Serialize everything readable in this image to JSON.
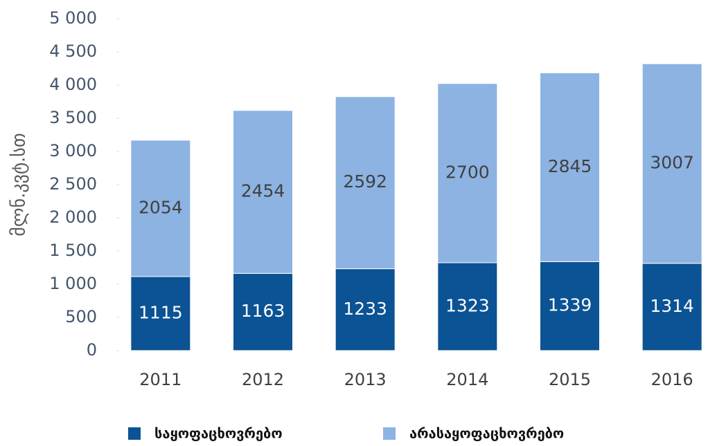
{
  "chart_data": {
    "type": "stacked_bar",
    "y_label": "მლნ.კვტ.სთ",
    "categories": [
      "2011",
      "2012",
      "2013",
      "2014",
      "2015",
      "2016"
    ],
    "series": [
      {
        "name": "საყოფაცხოვრებო",
        "color": "#0b5394",
        "label_color": "#ffffff",
        "values": [
          1115,
          1163,
          1233,
          1323,
          1339,
          1314
        ]
      },
      {
        "name": "არასაყოფაცხოვრებო",
        "color": "#8db3e2",
        "label_color": "#404040",
        "values": [
          2054,
          2454,
          2592,
          2700,
          2845,
          3007
        ]
      }
    ],
    "ylim": [
      0,
      5000
    ],
    "yticks": [
      0,
      500,
      {
        "value": 1000,
        "label": "1 000"
      },
      {
        "value": 1500,
        "label": "1 500"
      },
      {
        "value": 2000,
        "label": "2 000"
      },
      {
        "value": 2500,
        "label": "2 500"
      },
      {
        "value": 3000,
        "label": "3 000"
      },
      {
        "value": 3500,
        "label": "3 500"
      },
      {
        "value": 4000,
        "label": "4 000"
      },
      {
        "value": 4500,
        "label": "4 500"
      },
      {
        "value": 5000,
        "label": "5 000"
      }
    ],
    "legend": "bottom"
  }
}
